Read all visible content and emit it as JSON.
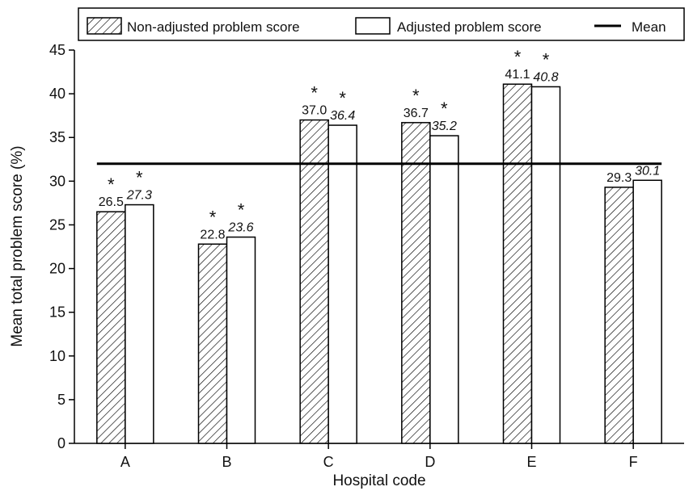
{
  "chart_data": {
    "type": "bar",
    "categories": [
      "A",
      "B",
      "C",
      "D",
      "E",
      "F"
    ],
    "series": [
      {
        "name": "Non-adjusted problem score",
        "pattern": "hatched",
        "values": [
          26.5,
          22.8,
          37.0,
          36.7,
          41.1,
          29.3
        ],
        "labels": [
          "26.5",
          "22.8",
          "37.0",
          "36.7",
          "41.1",
          "29.3"
        ],
        "significant": [
          true,
          true,
          true,
          true,
          true,
          false
        ],
        "label_style": "normal"
      },
      {
        "name": "Adjusted problem score",
        "pattern": "solid-white",
        "values": [
          27.3,
          23.6,
          36.4,
          35.2,
          40.8,
          30.1
        ],
        "labels": [
          "27.3",
          "23.6",
          "36.4",
          "35.2",
          "40.8",
          "30.1"
        ],
        "significant": [
          true,
          true,
          true,
          true,
          true,
          false
        ],
        "label_style": "italic"
      }
    ],
    "mean": {
      "name": "Mean",
      "value": 32.0
    },
    "significance_marker": "*",
    "xlabel": "Hospital code",
    "ylabel": "Mean total problem score (%)",
    "ylim": [
      0,
      45
    ],
    "yticks": [
      0,
      5,
      10,
      15,
      20,
      25,
      30,
      35,
      40,
      45
    ],
    "grid": false,
    "legend_position": "top",
    "colors": {
      "bar_stroke": "#000000",
      "bar_fill": "#ffffff",
      "hatch": "#000000",
      "mean_line": "#000000"
    }
  }
}
